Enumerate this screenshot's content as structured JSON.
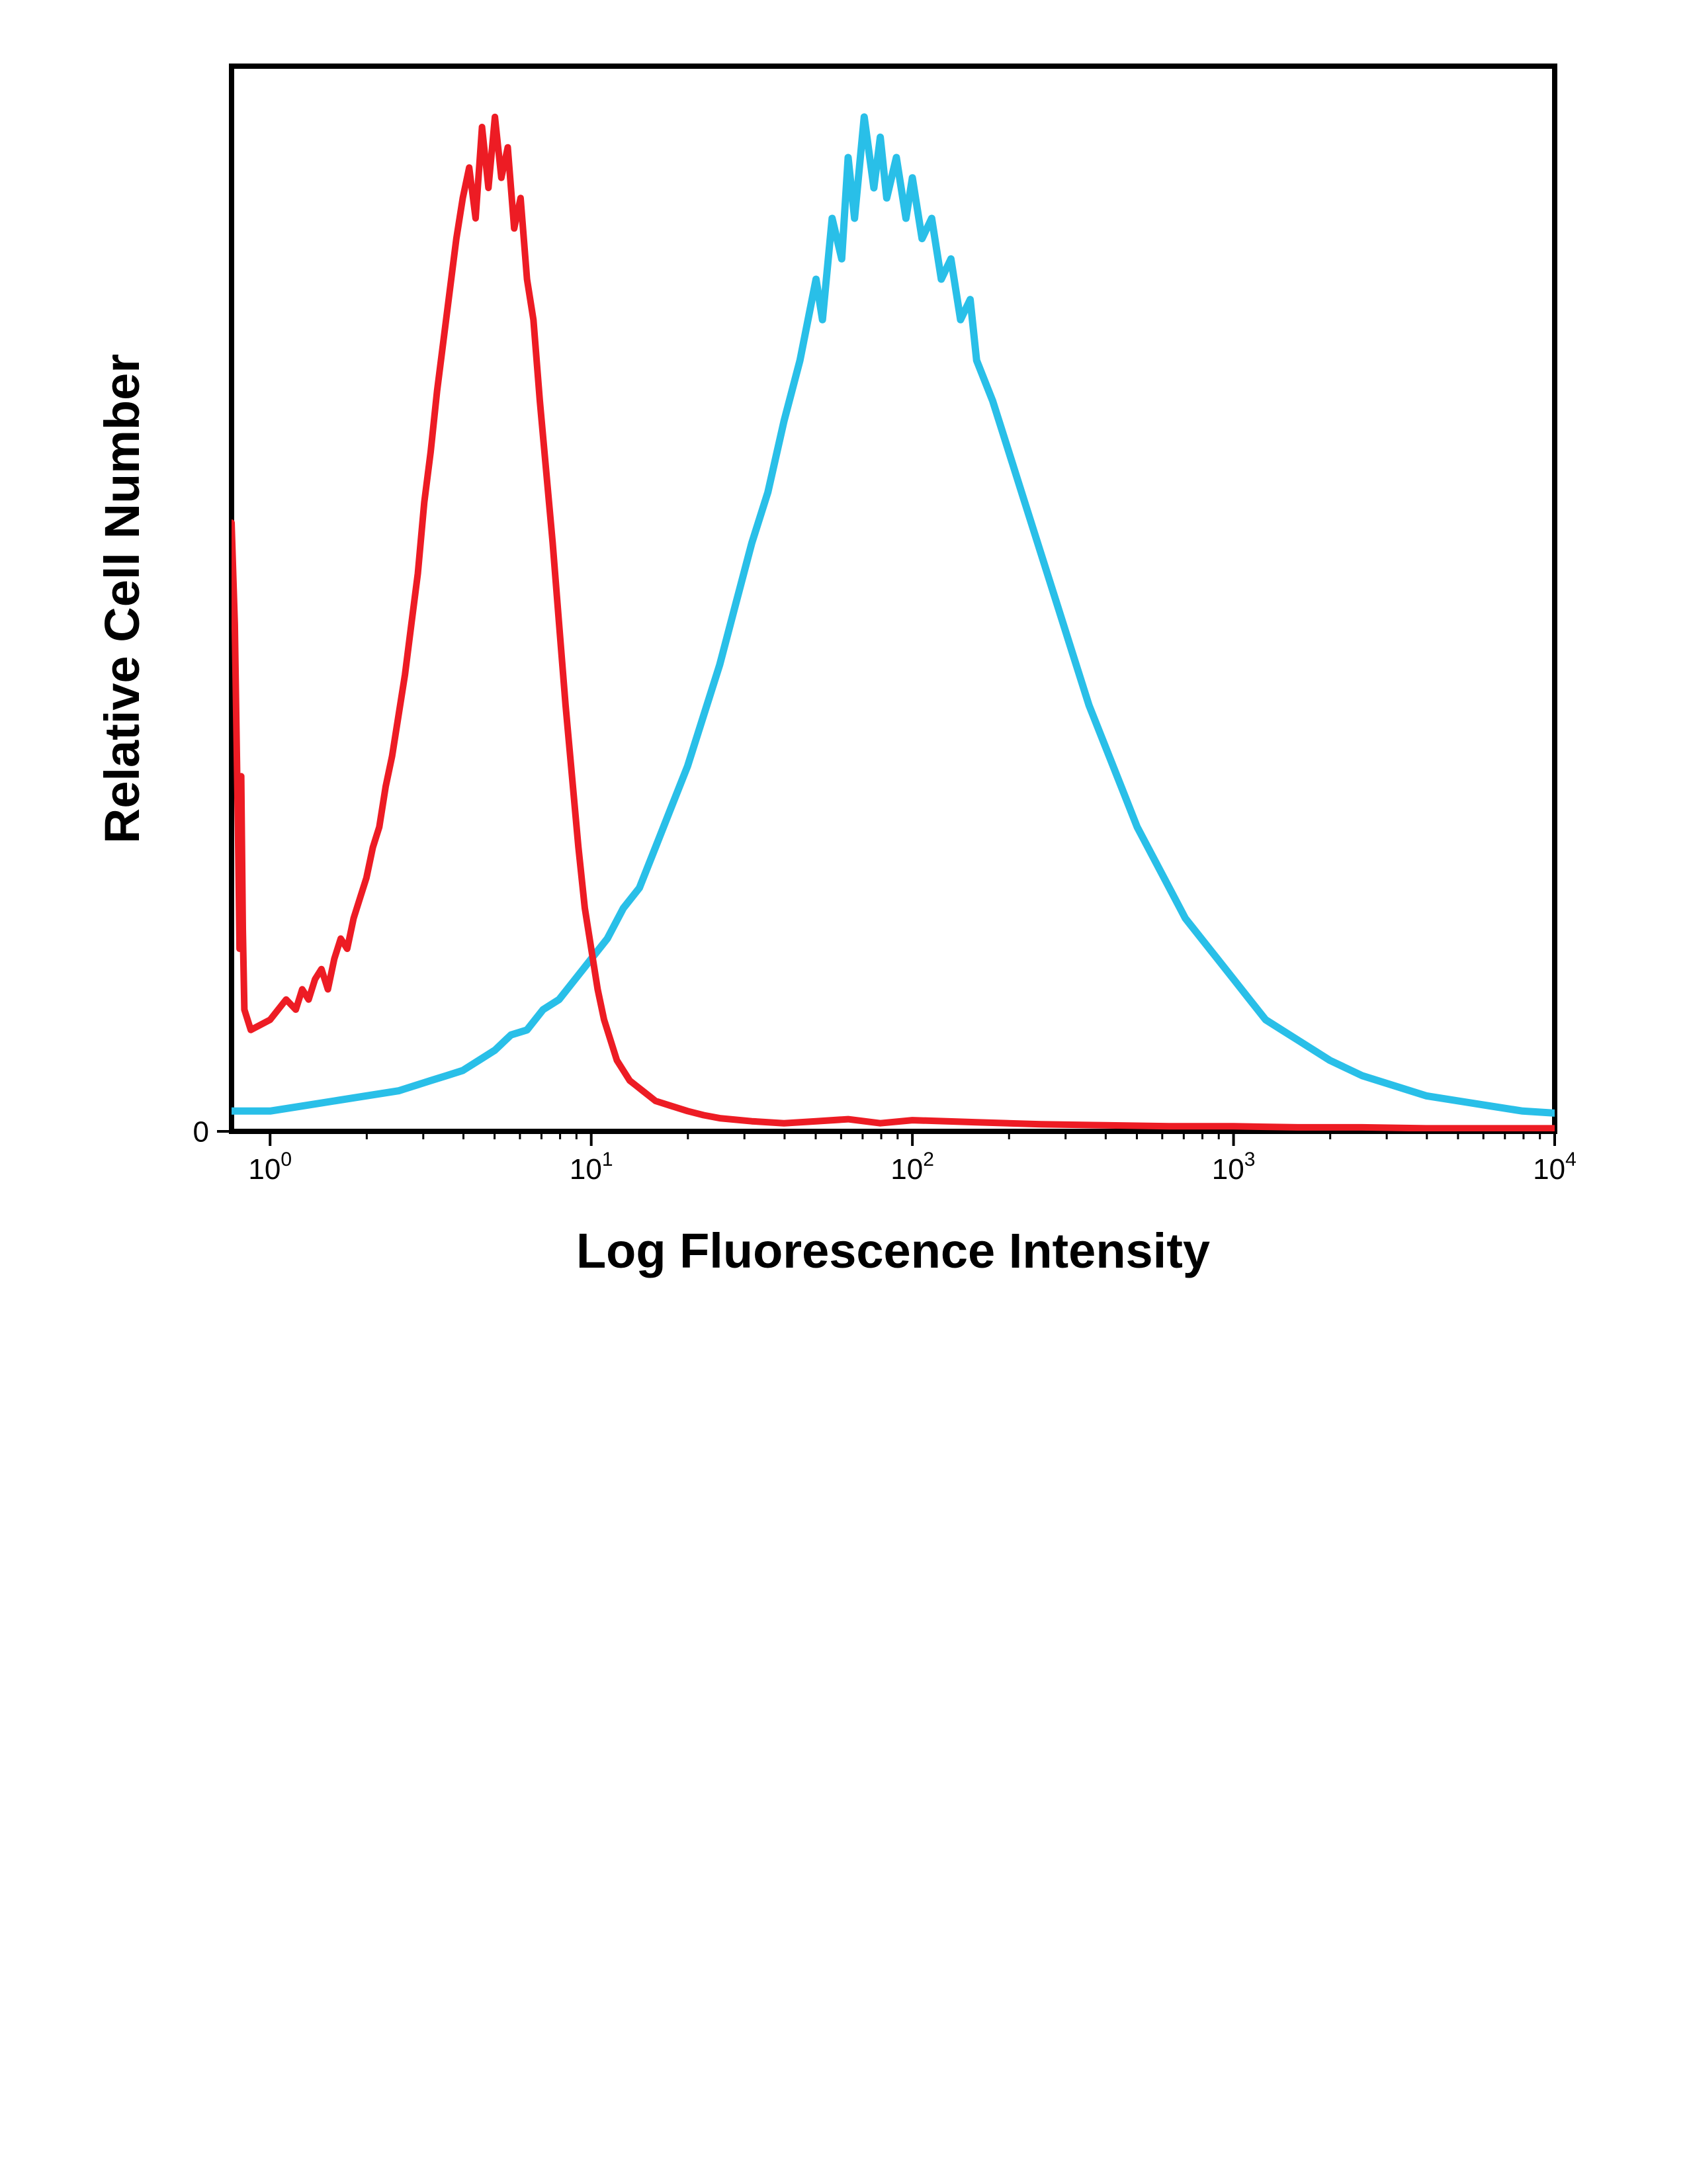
{
  "flow_histogram": {
    "type": "histogram",
    "xlabel": "Log Fluorescence Intensity",
    "ylabel": "Relative Cell Number",
    "x_scale": "log10",
    "x_ticks_log10": [
      0,
      1,
      2,
      3,
      4
    ],
    "x_tick_labels": [
      "10",
      "10",
      "10",
      "10",
      "10"
    ],
    "x_tick_superscripts": [
      "0",
      "1",
      "2",
      "3",
      "4"
    ],
    "y_tick_labels": [
      "0"
    ],
    "xlim_log10": [
      -0.12,
      4.0
    ],
    "ylim": [
      0,
      105
    ],
    "background_color": "#ffffff",
    "border_color": "#000000",
    "border_width": 8,
    "tick_color": "#000000",
    "tick_length": 22,
    "tick_width": 4,
    "axis_label_fontsize": 74,
    "axis_label_fontweight": 700,
    "tick_label_fontsize": 44,
    "tick_superscript_fontsize": 30,
    "series": {
      "red": {
        "color": "#ed1c24",
        "line_width": 10,
        "data_x_log10": [
          -0.12,
          -0.11,
          -0.1,
          -0.095,
          -0.09,
          -0.085,
          -0.08,
          -0.06,
          0.0,
          0.05,
          0.08,
          0.1,
          0.12,
          0.14,
          0.16,
          0.18,
          0.2,
          0.22,
          0.24,
          0.26,
          0.28,
          0.3,
          0.32,
          0.34,
          0.36,
          0.38,
          0.4,
          0.42,
          0.44,
          0.46,
          0.48,
          0.5,
          0.52,
          0.54,
          0.56,
          0.58,
          0.6,
          0.62,
          0.64,
          0.66,
          0.68,
          0.7,
          0.72,
          0.74,
          0.76,
          0.78,
          0.8,
          0.82,
          0.84,
          0.86,
          0.88,
          0.9,
          0.92,
          0.94,
          0.96,
          0.98,
          1.0,
          1.02,
          1.04,
          1.06,
          1.08,
          1.1,
          1.12,
          1.14,
          1.16,
          1.18,
          1.2,
          1.25,
          1.3,
          1.35,
          1.4,
          1.5,
          1.6,
          1.7,
          1.8,
          1.9,
          2.0,
          2.2,
          2.4,
          2.6,
          2.8,
          3.0,
          3.2,
          3.4,
          3.6,
          3.8,
          4.0
        ],
        "data_y": [
          60,
          50,
          30,
          18,
          35,
          20,
          12,
          10,
          11,
          13,
          12,
          14,
          13,
          15,
          16,
          14,
          17,
          19,
          18,
          21,
          23,
          25,
          28,
          30,
          34,
          37,
          41,
          45,
          50,
          55,
          62,
          67,
          73,
          78,
          83,
          88,
          92,
          95,
          90,
          99,
          93,
          100,
          94,
          97,
          89,
          92,
          84,
          80,
          72,
          65,
          58,
          50,
          42,
          35,
          28,
          22,
          18,
          14,
          11,
          9,
          7,
          6,
          5,
          4.5,
          4,
          3.5,
          3,
          2.5,
          2,
          1.6,
          1.3,
          1.0,
          0.8,
          1.0,
          1.2,
          0.8,
          1.1,
          0.9,
          0.7,
          0.6,
          0.5,
          0.5,
          0.4,
          0.4,
          0.3,
          0.3,
          0.3
        ]
      },
      "blue": {
        "color": "#29bfe8",
        "line_width": 11,
        "data_x_log10": [
          -0.12,
          0.0,
          0.1,
          0.2,
          0.3,
          0.4,
          0.5,
          0.55,
          0.6,
          0.65,
          0.7,
          0.75,
          0.8,
          0.85,
          0.9,
          0.95,
          1.0,
          1.05,
          1.1,
          1.15,
          1.2,
          1.25,
          1.3,
          1.35,
          1.4,
          1.45,
          1.5,
          1.55,
          1.6,
          1.65,
          1.7,
          1.72,
          1.75,
          1.78,
          1.8,
          1.82,
          1.85,
          1.88,
          1.9,
          1.92,
          1.95,
          1.98,
          2.0,
          2.03,
          2.06,
          2.09,
          2.12,
          2.15,
          2.18,
          2.2,
          2.25,
          2.3,
          2.35,
          2.4,
          2.45,
          2.5,
          2.55,
          2.6,
          2.65,
          2.7,
          2.75,
          2.8,
          2.85,
          2.9,
          2.95,
          3.0,
          3.05,
          3.1,
          3.15,
          3.2,
          3.25,
          3.3,
          3.4,
          3.5,
          3.6,
          3.7,
          3.8,
          3.9,
          4.0
        ],
        "data_y": [
          2,
          2,
          2.5,
          3,
          3.5,
          4,
          5,
          5.5,
          6,
          7,
          8,
          9.5,
          10,
          12,
          13,
          15,
          17,
          19,
          22,
          24,
          28,
          32,
          36,
          41,
          46,
          52,
          58,
          63,
          70,
          76,
          84,
          80,
          90,
          86,
          96,
          90,
          100,
          93,
          98,
          92,
          96,
          90,
          94,
          88,
          90,
          84,
          86,
          80,
          82,
          76,
          72,
          67,
          62,
          57,
          52,
          47,
          42,
          38,
          34,
          30,
          27,
          24,
          21,
          19,
          17,
          15,
          13,
          11,
          10,
          9,
          8,
          7,
          5.5,
          4.5,
          3.5,
          3,
          2.5,
          2,
          1.8
        ]
      }
    },
    "x_minor_ticks_log10": [
      0.301,
      0.477,
      0.602,
      0.699,
      0.778,
      0.845,
      0.903,
      0.954,
      1.301,
      1.477,
      1.602,
      1.699,
      1.778,
      1.845,
      1.903,
      1.954,
      2.301,
      2.477,
      2.602,
      2.699,
      2.778,
      2.845,
      2.903,
      2.954,
      3.301,
      3.477,
      3.602,
      3.699,
      3.778,
      3.845,
      3.903,
      3.954
    ],
    "minor_tick_length": 12
  }
}
